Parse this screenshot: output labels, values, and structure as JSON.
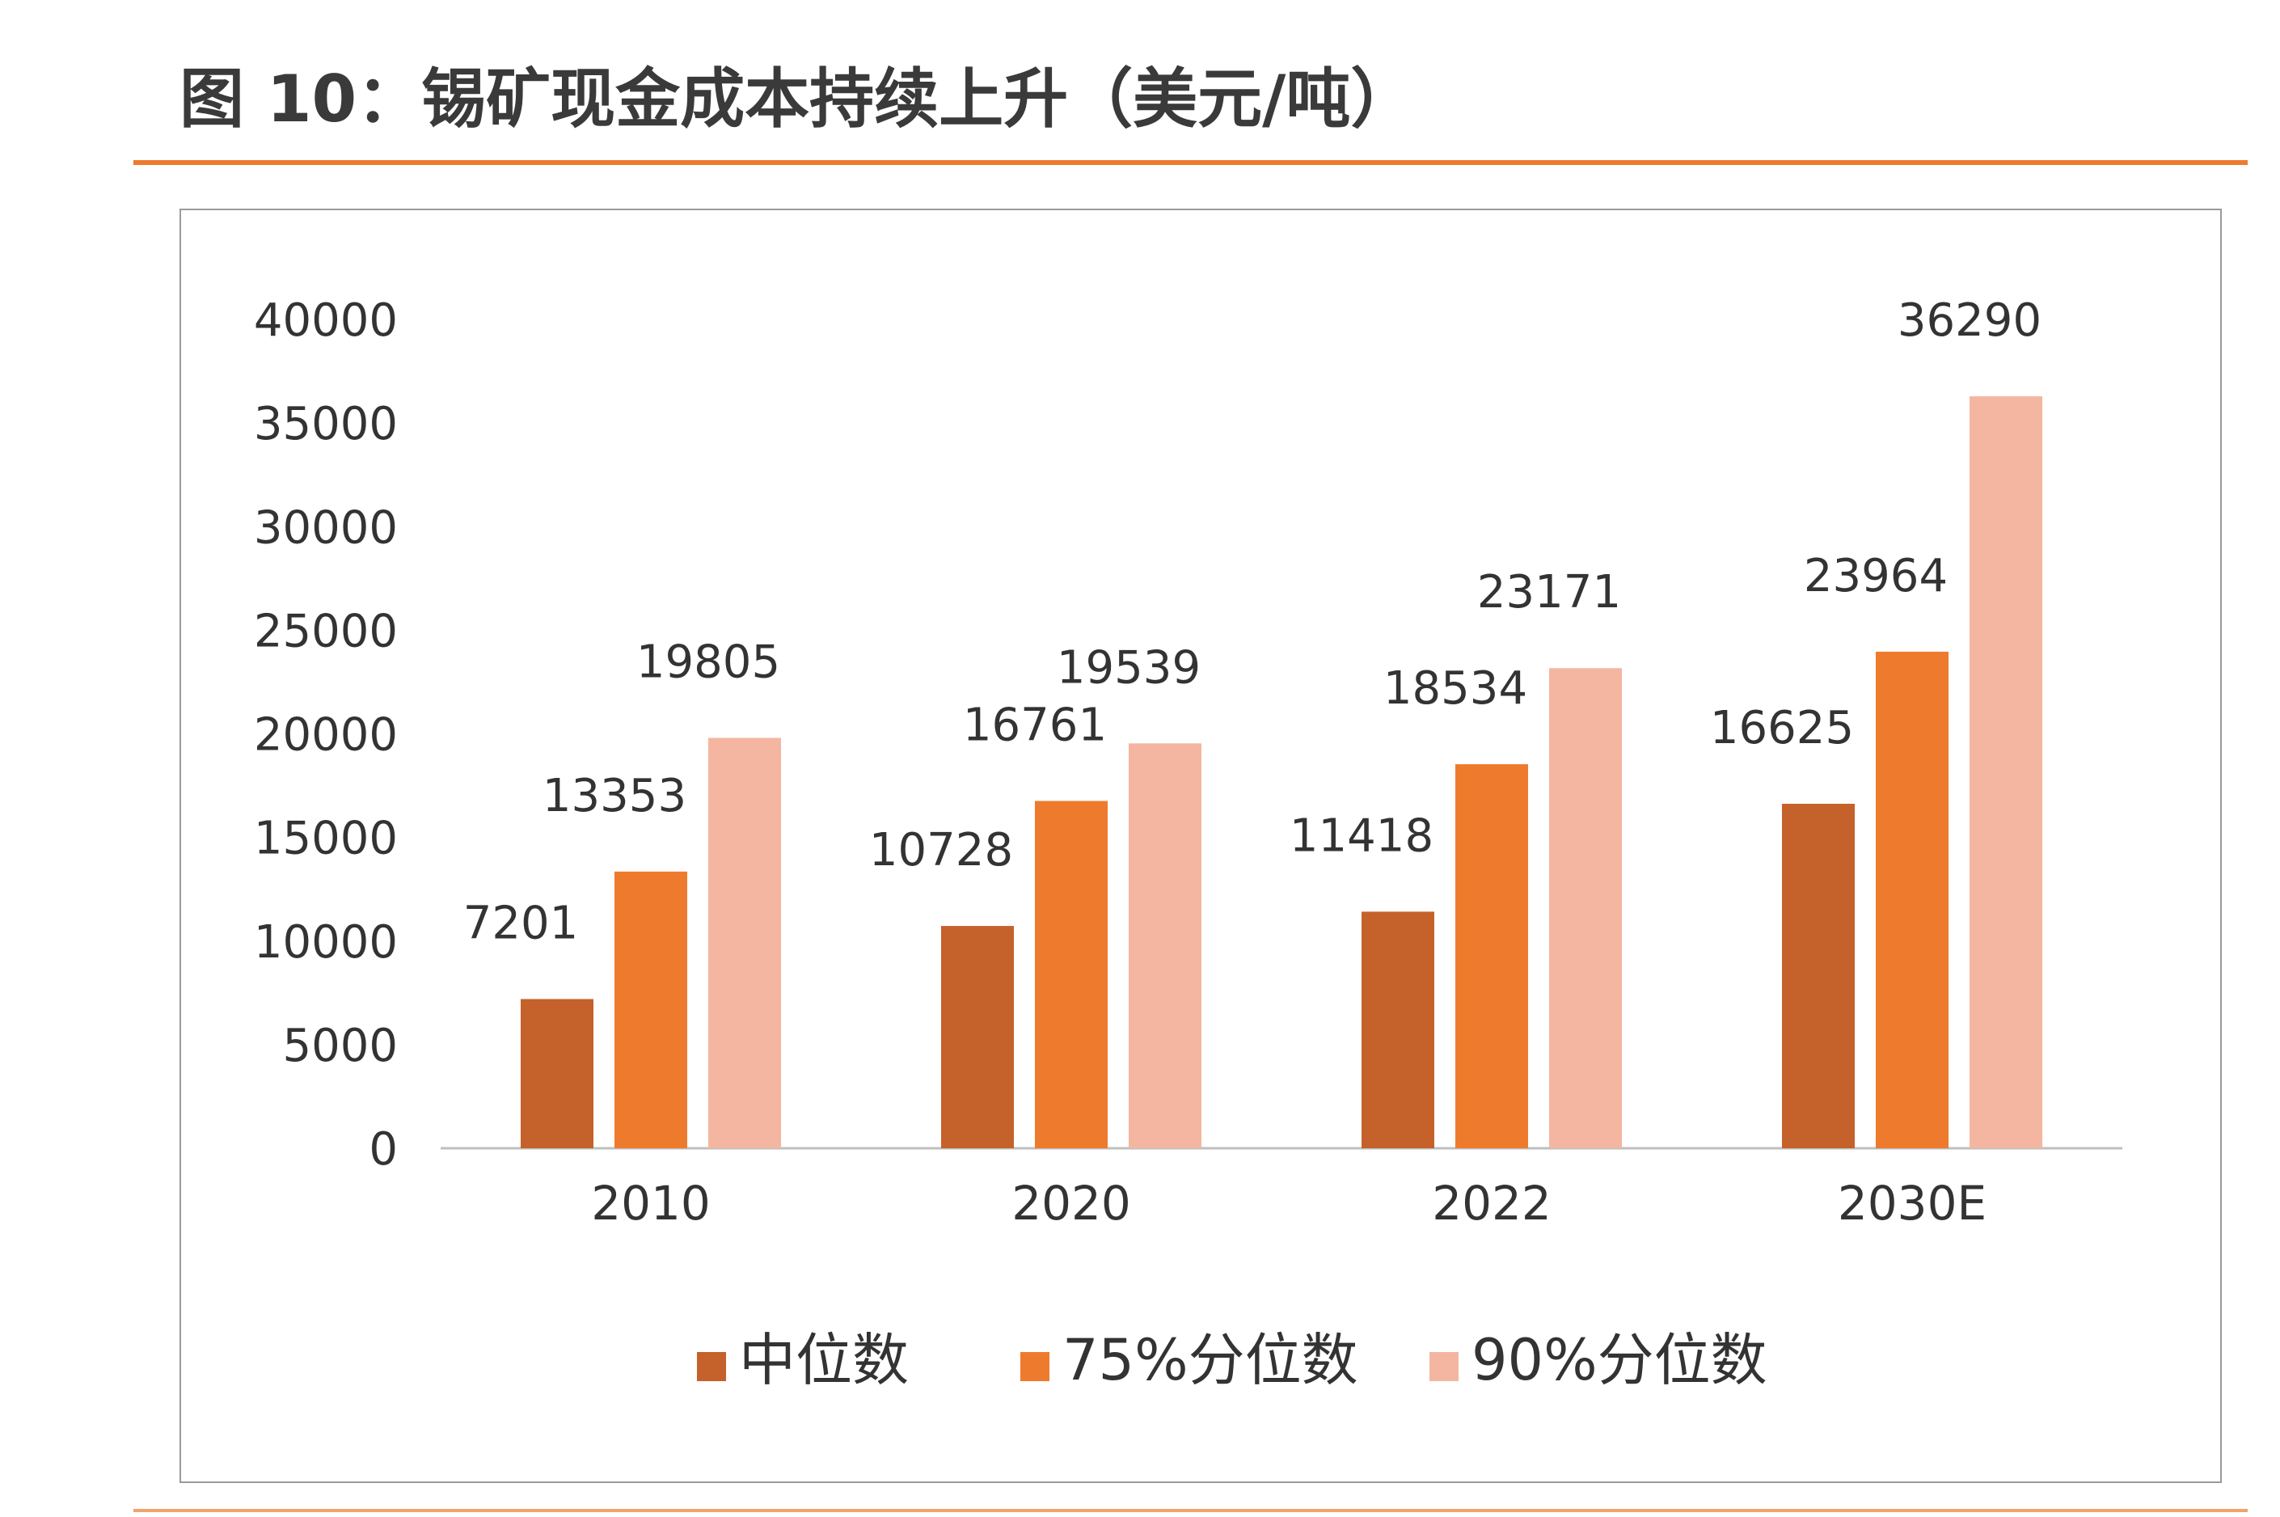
{
  "header": {
    "title": "图 10：锡矿现金成本持续上升（美元/吨）"
  },
  "colors": {
    "accent_rule": "#ee7b2d",
    "bottom_rule": "#f0a36a",
    "frame": "#9a9a9a"
  },
  "chart_data": {
    "type": "bar",
    "title": "",
    "xlabel": "",
    "ylabel": "",
    "categories": [
      "2010",
      "2020",
      "2022",
      "2030E"
    ],
    "series": [
      {
        "name": "中位数",
        "color": "#c5612a",
        "values": [
          7201,
          10728,
          11418,
          16625
        ]
      },
      {
        "name": "75%分位数",
        "color": "#ee7b2d",
        "values": [
          13353,
          16761,
          18534,
          23964
        ]
      },
      {
        "name": "90%分位数",
        "color": "#f4b6a0",
        "values": [
          19805,
          19539,
          23171,
          36290
        ]
      }
    ],
    "ylim": [
      0,
      40000
    ],
    "yticks": [
      0,
      5000,
      10000,
      15000,
      20000,
      25000,
      30000,
      35000,
      40000
    ],
    "grid": false,
    "legend": "bottom",
    "data_labels": true
  }
}
